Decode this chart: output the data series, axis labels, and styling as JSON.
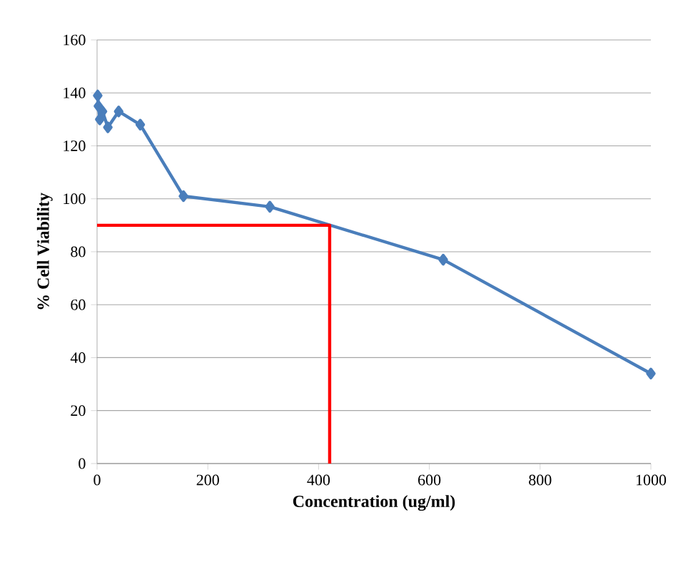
{
  "chart_data": {
    "type": "line",
    "xlabel": "Concentration (ug/ml)",
    "ylabel": "% Cell Viability",
    "series": [
      {
        "x": [
          1.2,
          2.4,
          4.9,
          9.8,
          19.5,
          39,
          78,
          156,
          312,
          625,
          1000
        ],
        "values": [
          139,
          135,
          130,
          133,
          127,
          133,
          128,
          101,
          97,
          77,
          34
        ],
        "color": "#4a7ebb",
        "marker": "diamond"
      },
      {
        "x": [
          0,
          420,
          420
        ],
        "values": [
          90,
          90,
          0
        ],
        "color": "#ff0000",
        "marker": "none"
      }
    ],
    "xlim": [
      0,
      1000
    ],
    "ylim": [
      0,
      160
    ],
    "xticks": [
      0,
      200,
      400,
      600,
      800,
      1000
    ],
    "yticks": [
      0,
      20,
      40,
      60,
      80,
      100,
      120,
      140,
      160
    ],
    "grid": "y",
    "line_style": "solid"
  }
}
